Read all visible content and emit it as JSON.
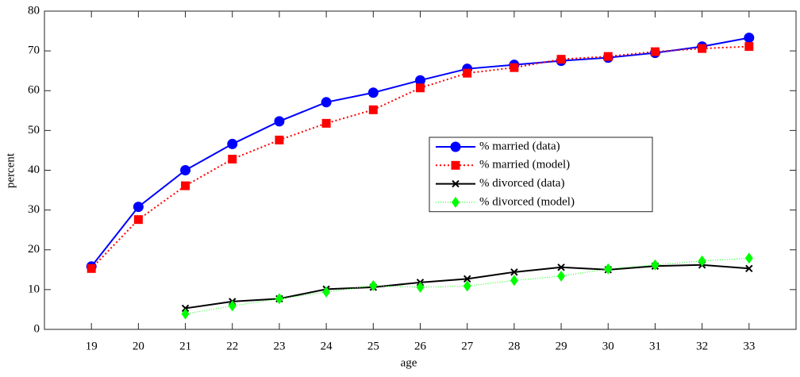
{
  "chart_data": {
    "type": "line",
    "x_label": "age",
    "y_label": "percent",
    "x": [
      19,
      20,
      21,
      22,
      23,
      24,
      25,
      26,
      27,
      28,
      29,
      30,
      31,
      32,
      33
    ],
    "series": [
      {
        "name": "% married (data)",
        "color": "#0000ff",
        "marker": "circle",
        "linestyle": "solid",
        "values": [
          15.8,
          30.8,
          40,
          46.6,
          52.3,
          57.1,
          59.5,
          62.6,
          65.5,
          66.5,
          67.5,
          68.3,
          69.5,
          71.1,
          73.3
        ]
      },
      {
        "name": "% married (model)",
        "color": "#ff0000",
        "marker": "square",
        "linestyle": "dotted",
        "values": [
          15.3,
          27.6,
          36.1,
          42.8,
          47.6,
          51.8,
          55.2,
          60.7,
          64.4,
          65.8,
          67.9,
          68.6,
          69.8,
          70.6,
          71.1
        ]
      },
      {
        "name": "% divorced (data)",
        "color": "#000000",
        "marker": "x",
        "linestyle": "solid",
        "values": [
          null,
          null,
          5.3,
          7.0,
          7.7,
          10.1,
          10.6,
          11.8,
          12.7,
          14.4,
          15.6,
          15.0,
          15.9,
          16.2,
          15.3
        ]
      },
      {
        "name": "% divorced (model)",
        "color": "#00ff00",
        "marker": "diamond",
        "linestyle": "thin-dotted",
        "values": [
          null,
          null,
          3.9,
          5.9,
          7.7,
          9.4,
          11.0,
          10.6,
          10.9,
          12.3,
          13.4,
          15.2,
          16.2,
          17.2,
          17.9
        ]
      }
    ],
    "xlim": [
      18,
      34
    ],
    "xticks": [
      19,
      20,
      21,
      22,
      23,
      24,
      25,
      26,
      27,
      28,
      29,
      30,
      31,
      32,
      33
    ],
    "ylim": [
      0,
      80
    ],
    "yticks": [
      0,
      10,
      20,
      30,
      40,
      50,
      60,
      70,
      80
    ],
    "grid": false,
    "legend": "east"
  }
}
